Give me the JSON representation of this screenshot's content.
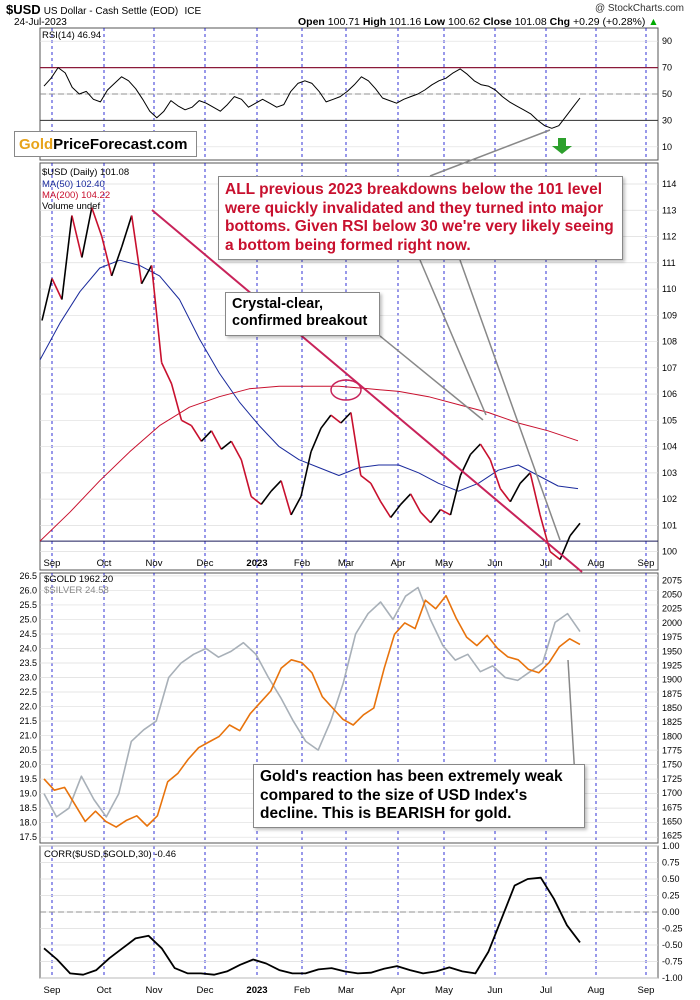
{
  "header": {
    "symbol": "$USD",
    "description": "US Dollar - Cash Settle (EOD)",
    "exchange": "ICE",
    "date": "24-Jul-2023",
    "open_label": "Open",
    "open": "100.71",
    "high_label": "High",
    "high": "101.16",
    "low_label": "Low",
    "low": "100.62",
    "close_label": "Close",
    "close": "101.08",
    "chg_label": "Chg",
    "chg": "+0.29 (+0.28%)",
    "credit": "@ StockCharts.com"
  },
  "logo": {
    "gold": "Gold",
    "rest": "PriceForecast.com"
  },
  "callouts": {
    "top": "ALL previous 2023 breakdowns below the 101 level were quickly invalidated and they turned into major bottoms. Given RSI below 30 we're very likely seeing a bottom being formed right now.",
    "breakout": "Crystal-clear, confirmed breakout",
    "gold": "Gold's reaction has been extremely weak compared to the size of USD Index's decline. This is BEARISH for gold."
  },
  "colors": {
    "rsi_band": "#8b1a3a",
    "price_up": "#000000",
    "price_down": "#c8102e",
    "ma50": "#1a2a9c",
    "ma200": "#c8102e",
    "trendline": "#c8235a",
    "gold": "#e8730c",
    "silver": "#a8b0b8",
    "corr": "#000000",
    "month_grid": "#0000cc",
    "green_arrow": "#2ca02c"
  },
  "chart_data": [
    {
      "type": "line",
      "panel": "rsi",
      "legend": "RSI(14) 46.94",
      "ylim": [
        0,
        100
      ],
      "y_ticks": [
        "90",
        "70",
        "50",
        "30",
        "10"
      ],
      "overbought": 70,
      "oversold": 30,
      "values": [
        56,
        62,
        70,
        66,
        55,
        50,
        52,
        46,
        44,
        53,
        58,
        63,
        60,
        54,
        46,
        37,
        32,
        37,
        45,
        41,
        38,
        40,
        45,
        43,
        40,
        37,
        42,
        48,
        46,
        40,
        43,
        46,
        43,
        40,
        42,
        52,
        58,
        60,
        58,
        52,
        44,
        46,
        48,
        52,
        57,
        63,
        60,
        54,
        47,
        45,
        43,
        46,
        48,
        50,
        53,
        57,
        60,
        62,
        66,
        69,
        65,
        60,
        57,
        56,
        53,
        48,
        44,
        41,
        38,
        35,
        30,
        26,
        24,
        26,
        33,
        40,
        47
      ]
    },
    {
      "type": "line",
      "panel": "price",
      "legend": [
        "$USD (Daily) 101.08",
        "MA(50) 102.40",
        "MA(200) 104.22",
        "Volume undef"
      ],
      "ylim": [
        99.3,
        114.8
      ],
      "y_ticks": [
        "114",
        "113",
        "112",
        "111",
        "110",
        "109",
        "108",
        "107",
        "106",
        "105",
        "104",
        "103",
        "102",
        "101",
        "100"
      ],
      "x_labels": [
        "Sep",
        "Oct",
        "Nov",
        "Dec",
        "2023",
        "Feb",
        "Mar",
        "Apr",
        "May",
        "Jun",
        "Jul",
        "Aug",
        "Sep"
      ],
      "series": [
        {
          "name": "$USD (Daily)",
          "values": [
            108.8,
            110.4,
            109.6,
            112.8,
            111.2,
            113.1,
            112.0,
            110.5,
            111.6,
            112.8,
            110.2,
            110.9,
            107.2,
            106.4,
            105.0,
            104.8,
            104.2,
            104.6,
            103.9,
            104.2,
            103.5,
            102.1,
            101.8,
            102.3,
            102.7,
            101.4,
            102.1,
            103.8,
            104.7,
            105.2,
            104.9,
            105.3,
            102.9,
            102.6,
            101.9,
            101.3,
            101.8,
            102.2,
            101.5,
            101.1,
            101.6,
            101.4,
            102.9,
            103.7,
            104.1,
            103.5,
            102.4,
            101.9,
            102.6,
            103.0,
            101.4,
            100.0,
            99.7,
            100.6,
            101.08
          ]
        },
        {
          "name": "MA(50)",
          "values": [
            107.3,
            108.7,
            109.9,
            110.8,
            111.1,
            110.9,
            110.5,
            109.6,
            108.1,
            106.8,
            105.7,
            104.8,
            104.0,
            103.5,
            103.2,
            102.9,
            103.2,
            103.3,
            103.3,
            103.0,
            102.6,
            102.3,
            102.6,
            103.1,
            103.3,
            102.9,
            102.5,
            102.4
          ]
        },
        {
          "name": "MA(200)",
          "values": [
            100.4,
            101.5,
            102.7,
            103.8,
            104.8,
            105.5,
            105.9,
            106.2,
            106.3,
            106.3,
            106.3,
            106.2,
            106.1,
            105.9,
            105.6,
            105.3,
            104.9,
            104.6,
            104.22
          ]
        }
      ],
      "hline": 100.4
    },
    {
      "type": "line",
      "panel": "gold",
      "legend": [
        "$GOLD 1962.20",
        "$SILVER 24.58"
      ],
      "ylim_silver": [
        17.3,
        26.6
      ],
      "ylim_gold": [
        1612,
        2088
      ],
      "y_ticks_left": [
        "26.5",
        "26.0",
        "25.5",
        "25.0",
        "24.5",
        "24.0",
        "23.5",
        "23.0",
        "22.5",
        "22.0",
        "21.5",
        "21.0",
        "20.5",
        "20.0",
        "19.5",
        "19.0",
        "18.5",
        "18.0",
        "17.5"
      ],
      "y_ticks_right": [
        "2075",
        "2050",
        "2025",
        "2000",
        "1975",
        "1950",
        "1925",
        "1900",
        "1875",
        "1850",
        "1825",
        "1800",
        "1775",
        "1750",
        "1725",
        "1700",
        "1675",
        "1650",
        "1625"
      ],
      "series": [
        {
          "name": "$GOLD",
          "values": [
            1725,
            1705,
            1710,
            1680,
            1650,
            1668,
            1650,
            1640,
            1652,
            1660,
            1642,
            1660,
            1720,
            1735,
            1760,
            1780,
            1790,
            1800,
            1820,
            1810,
            1840,
            1860,
            1880,
            1920,
            1935,
            1930,
            1912,
            1870,
            1850,
            1830,
            1820,
            1838,
            1850,
            1920,
            1980,
            2000,
            1990,
            2040,
            2025,
            2048,
            2008,
            1975,
            1960,
            1978,
            1955,
            1940,
            1935,
            1918,
            1912,
            1930,
            1958,
            1972,
            1962.2
          ]
        },
        {
          "name": "$SILVER",
          "values": [
            19.0,
            18.2,
            18.5,
            19.6,
            18.8,
            18.2,
            19.0,
            20.8,
            21.2,
            21.5,
            23.0,
            23.5,
            23.8,
            24.0,
            23.7,
            23.9,
            24.2,
            23.8,
            23.0,
            22.3,
            21.5,
            20.8,
            20.5,
            21.5,
            22.8,
            24.5,
            25.2,
            25.6,
            25.0,
            25.8,
            26.1,
            25.0,
            24.1,
            23.6,
            23.8,
            23.2,
            23.4,
            23.0,
            22.9,
            23.2,
            23.5,
            24.9,
            25.2,
            24.58
          ]
        }
      ]
    },
    {
      "type": "line",
      "panel": "correlation",
      "legend": "CORR($USD,$GOLD,30) -0.46",
      "ylim": [
        -1.0,
        1.0
      ],
      "y_ticks": [
        "1.00",
        "0.75",
        "0.50",
        "0.25",
        "0.00",
        "-0.25",
        "-0.50",
        "-0.75",
        "-1.00"
      ],
      "x_labels": [
        "Sep",
        "Oct",
        "Nov",
        "Dec",
        "2023",
        "Feb",
        "Mar",
        "Apr",
        "May",
        "Jun",
        "Jul",
        "Aug",
        "Sep"
      ],
      "values": [
        -0.55,
        -0.72,
        -0.93,
        -0.95,
        -0.88,
        -0.7,
        -0.55,
        -0.4,
        -0.36,
        -0.55,
        -0.85,
        -0.93,
        -0.93,
        -0.95,
        -0.9,
        -0.8,
        -0.72,
        -0.78,
        -0.88,
        -0.93,
        -0.93,
        -0.87,
        -0.85,
        -0.9,
        -0.93,
        -0.92,
        -0.86,
        -0.82,
        -0.88,
        -0.93,
        -0.9,
        -0.84,
        -0.9,
        -0.93,
        -0.6,
        -0.1,
        0.4,
        0.5,
        0.52,
        0.2,
        -0.2,
        -0.46
      ]
    }
  ]
}
